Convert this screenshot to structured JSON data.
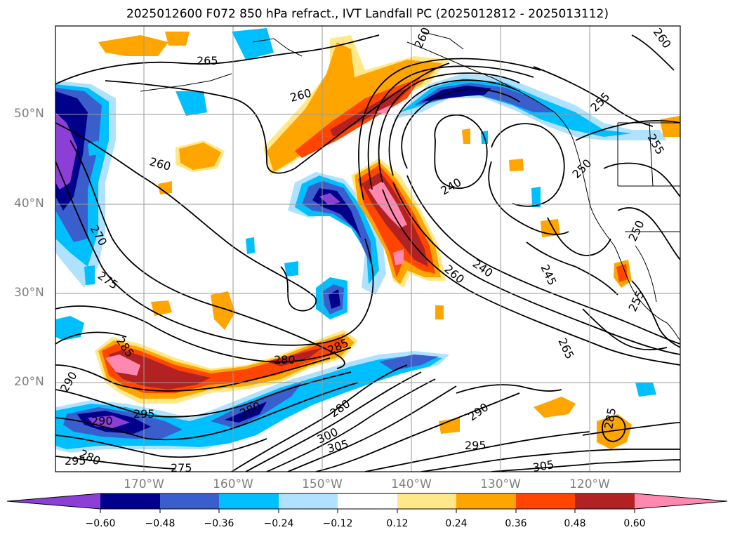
{
  "title": "2025012600 F072 850 hPa refract., IVT Landfall PC (2025012812 - 2025013112)",
  "lat_labels": [
    "50°N",
    "40°N",
    "30°N",
    "20°N"
  ],
  "lon_labels": [
    "170°W",
    "160°W",
    "150°W",
    "140°W",
    "130°W",
    "120°W"
  ],
  "colorbar": {
    "tick_labels": [
      "−0.60",
      "−0.48",
      "−0.36",
      "−0.24",
      "−0.12",
      "0.12",
      "0.24",
      "0.36",
      "0.48",
      "0.60"
    ],
    "colors": [
      "#8b3fd6",
      "#00008b",
      "#3a5fcd",
      "#00bfff",
      "#b0e2ff",
      "#ffffff",
      "#ffe88a",
      "#ffa500",
      "#ff4500",
      "#b22222",
      "#ff88b0"
    ]
  },
  "contour_labels": [
    "265",
    "260",
    "260",
    "270",
    "275",
    "285",
    "290",
    "290",
    "295",
    "280",
    "280",
    "285",
    "280",
    "300",
    "305",
    "295",
    "290",
    "305",
    "285",
    "265",
    "245",
    "240",
    "240",
    "260",
    "255",
    "255",
    "250",
    "250",
    "260",
    "260",
    "255",
    "280",
    "275",
    "295"
  ]
}
